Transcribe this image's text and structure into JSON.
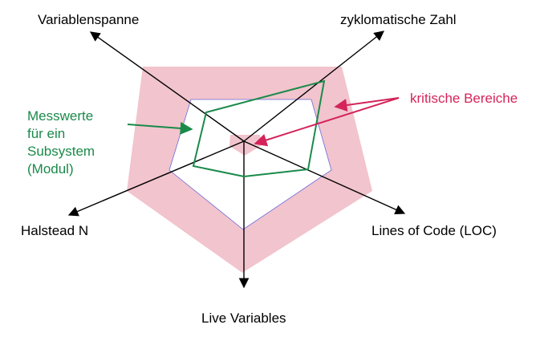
{
  "axes": {
    "top_left": "Variablenspanne",
    "top_right": "zyklomatische Zahl",
    "left": "Halstead N",
    "right": "Lines of Code (LOC)",
    "bottom": "Live Variables"
  },
  "measurement_label": [
    "Messwerte",
    "für ein",
    "Subsystem",
    "(Modul)"
  ],
  "critical_label": "kritische Bereiche",
  "colors": {
    "critical_fill": "#f2c4cd",
    "critical_stroke": "#d98a9b",
    "measurement_line": "#1a8a4a",
    "critical_text": "#d4245a",
    "axis": "#000000",
    "boundary": "#6a6ad8"
  }
}
